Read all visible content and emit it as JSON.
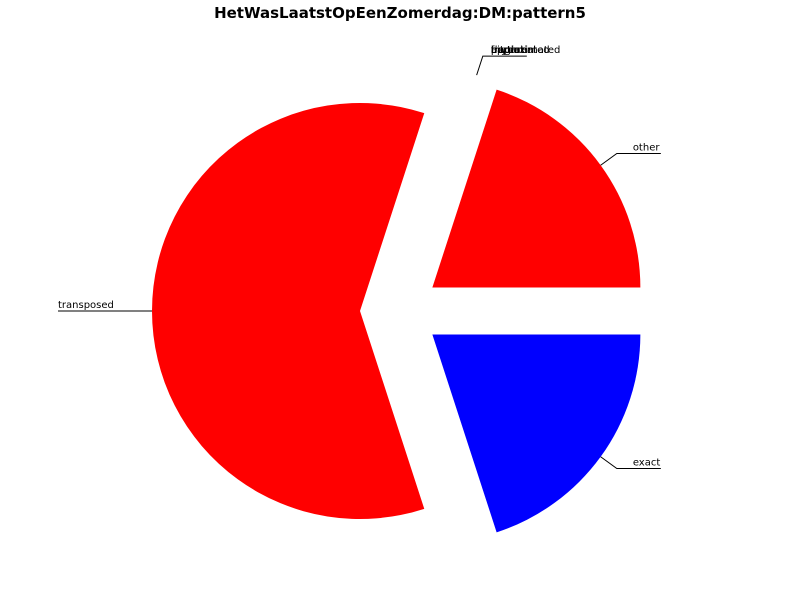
{
  "chart_data": {
    "type": "pie",
    "title": "HetWasLaatstOpEenZomerdag:DM:pattern5",
    "slices": [
      {
        "label": "other",
        "value": 20,
        "color": "#ff0000"
      },
      {
        "label": "bitpartial",
        "value": 0,
        "color": "#ff0000"
      },
      {
        "label": "transposed",
        "value": 60,
        "color": "#ff0000"
      },
      {
        "label": "exact",
        "value": 20,
        "color": "#0000ff"
      }
    ],
    "stacked_labels": [
      "bitpartial",
      "approximated",
      "partial",
      "rhythm",
      "fragmented"
    ]
  }
}
